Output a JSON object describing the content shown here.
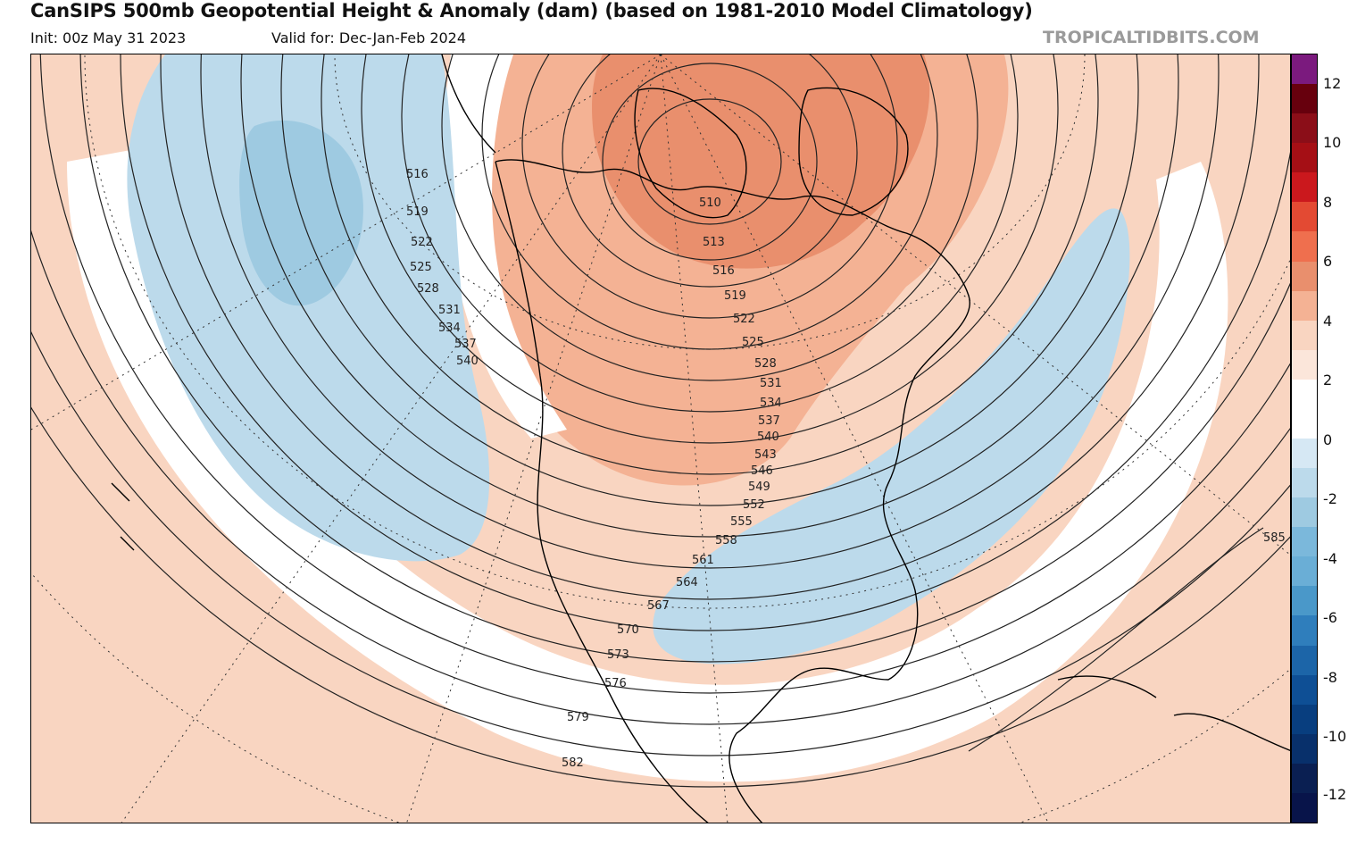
{
  "header": {
    "title": "CanSIPS 500mb Geopotential Height & Anomaly (dam) (based on 1981-2010 Model Climatology)",
    "init": "Init: 00z May 31 2023",
    "valid": "Valid for: Dec-Jan-Feb 2024",
    "credit": "TROPICALTIDBITS.COM"
  },
  "map": {
    "contour_labels": [
      "510",
      "513",
      "516",
      "516",
      "519",
      "519",
      "522",
      "522",
      "525",
      "525",
      "528",
      "528",
      "531",
      "531",
      "534",
      "534",
      "537",
      "537",
      "540",
      "540",
      "543",
      "546",
      "549",
      "552",
      "555",
      "558",
      "561",
      "564",
      "567",
      "570",
      "573",
      "576",
      "579",
      "582",
      "585"
    ],
    "anomaly_colors": {
      "positive_light": "#f9d5c1",
      "positive_mid": "#f4b294",
      "positive_strong": "#e98f6d",
      "neutral": "#ffffff",
      "negative_light": "#bcdaeb",
      "negative_mid": "#9ecae1",
      "negative_strong": "#6aaed6",
      "land_outline": "#000000",
      "height_contour": "#222222"
    }
  },
  "colorbar": {
    "labels": [
      "12",
      "10",
      "8",
      "6",
      "4",
      "2",
      "0",
      "-2",
      "-4",
      "-6",
      "-8",
      "-10",
      "-12"
    ],
    "colors": [
      "#7b1a7e",
      "#67000d",
      "#8b0e18",
      "#a50f15",
      "#cb181d",
      "#e34a33",
      "#ef6f4e",
      "#e98f6d",
      "#f4b294",
      "#f9d5c1",
      "#fbe6da",
      "#ffffff",
      "#ffffff",
      "#d6e8f4",
      "#bcdaeb",
      "#9ecae1",
      "#7bb8db",
      "#6aaed6",
      "#4a98c9",
      "#2f7ebc",
      "#1c65a8",
      "#0e4f95",
      "#083e7f",
      "#08306b",
      "#0a1f52",
      "#08144a"
    ]
  }
}
